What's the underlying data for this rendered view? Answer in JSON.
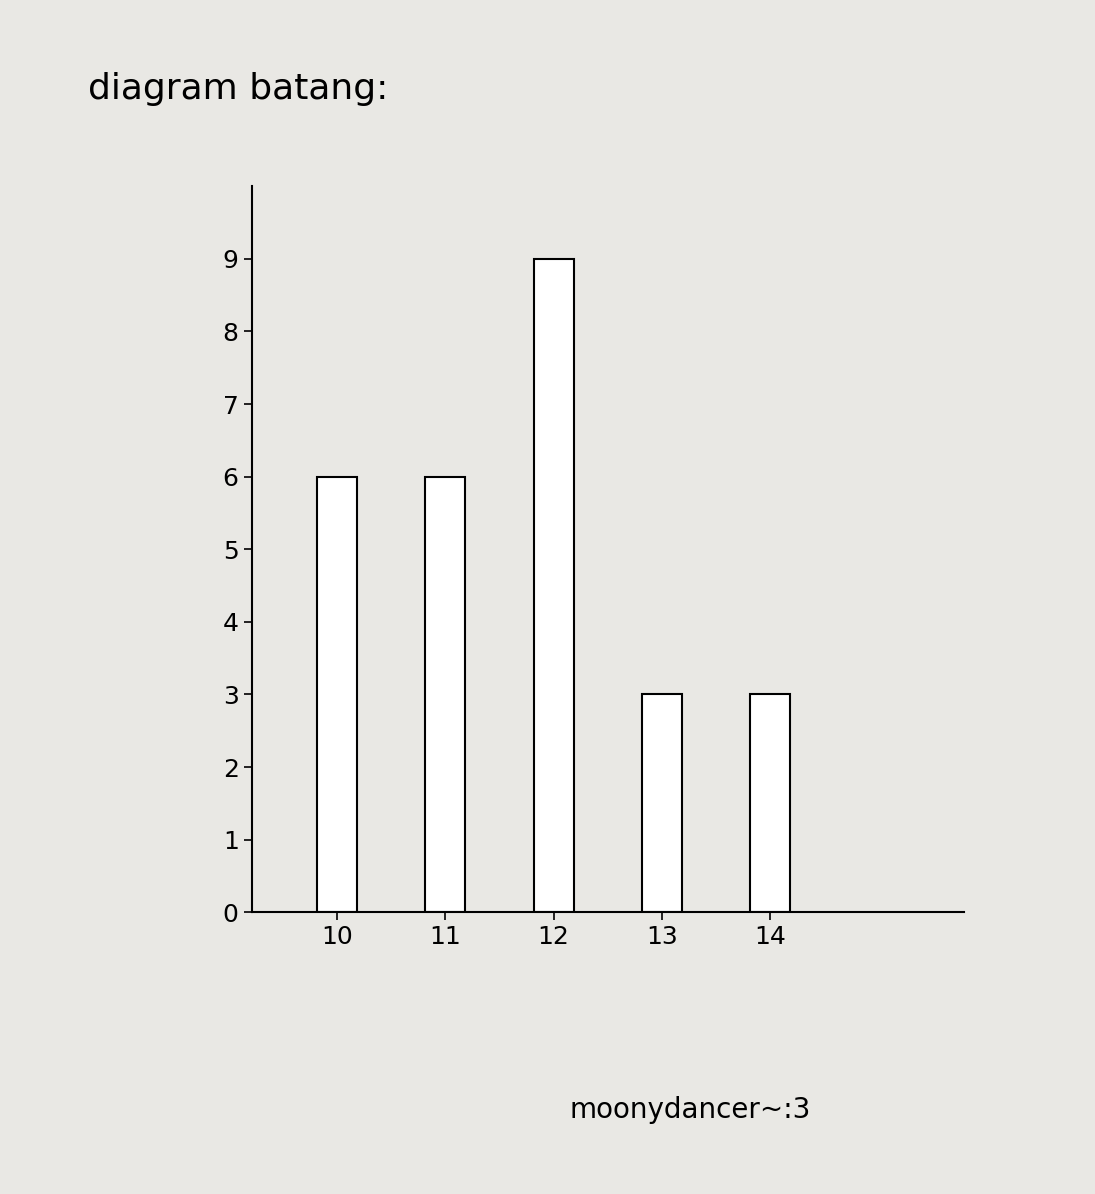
{
  "chart_data": {
    "type": "bar",
    "title": "diagram batang:",
    "categories": [
      "10",
      "11",
      "12",
      "13",
      "14"
    ],
    "values": [
      6,
      6,
      9,
      3,
      3
    ],
    "color": "#ffffff",
    "ylim": [
      0,
      10
    ],
    "yticks": [
      0,
      1,
      2,
      3,
      4,
      5,
      6,
      7,
      8,
      9
    ],
    "annotations": [
      "moonydancer~:3"
    ]
  }
}
